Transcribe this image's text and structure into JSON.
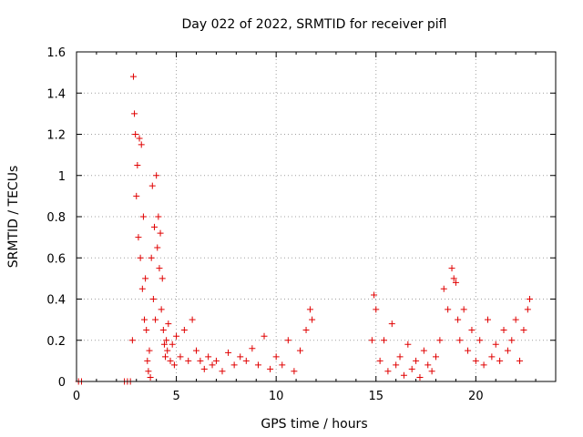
{
  "chart_data": {
    "type": "scatter",
    "title": "Day 022 of 2022, SRMTID for receiver pifl",
    "xlabel": "GPS time / hours",
    "ylabel": "SRMTID / TECUs",
    "xlim": [
      0,
      24
    ],
    "ylim": [
      0,
      1.6
    ],
    "x_ticks": [
      0,
      5,
      10,
      15,
      20
    ],
    "x_tick_labels": [
      "0",
      "5",
      "10",
      "15",
      "20"
    ],
    "y_ticks": [
      0,
      0.2,
      0.4,
      0.6,
      0.8,
      1,
      1.2,
      1.4,
      1.6
    ],
    "y_tick_labels": [
      "0",
      "0.2",
      "0.4",
      "0.6",
      "0.8",
      "1",
      "1.2",
      "1.4",
      "1.6"
    ],
    "grid": true,
    "marker": "plus",
    "color": "#e00000",
    "series": [
      {
        "name": "SRMTID",
        "x": [
          0.1,
          0.25,
          2.4,
          2.55,
          2.7,
          2.8,
          2.85,
          2.9,
          2.95,
          3.0,
          3.05,
          3.1,
          3.15,
          3.2,
          3.25,
          3.3,
          3.35,
          3.4,
          3.45,
          3.5,
          3.55,
          3.6,
          3.65,
          3.7,
          3.75,
          3.8,
          3.85,
          3.9,
          3.95,
          4.0,
          4.05,
          4.1,
          4.15,
          4.2,
          4.25,
          4.3,
          4.35,
          4.4,
          4.45,
          4.5,
          4.55,
          4.6,
          4.7,
          4.8,
          4.9,
          5.0,
          5.2,
          5.4,
          5.6,
          5.8,
          6.0,
          6.2,
          6.4,
          6.6,
          6.8,
          7.0,
          7.3,
          7.6,
          7.9,
          8.2,
          8.5,
          8.8,
          9.1,
          9.4,
          9.7,
          10.0,
          10.3,
          10.6,
          10.9,
          11.2,
          11.5,
          11.7,
          11.8,
          14.8,
          14.9,
          15.0,
          15.2,
          15.4,
          15.6,
          15.8,
          16.0,
          16.2,
          16.4,
          16.6,
          16.8,
          17.0,
          17.2,
          17.4,
          17.6,
          17.8,
          18.0,
          18.2,
          18.4,
          18.6,
          18.8,
          18.9,
          19.0,
          19.1,
          19.2,
          19.4,
          19.6,
          19.8,
          20.0,
          20.2,
          20.4,
          20.6,
          20.8,
          21.0,
          21.2,
          21.4,
          21.6,
          21.8,
          22.0,
          22.2,
          22.4,
          22.6,
          22.7
        ],
        "values": [
          0.0,
          0.0,
          0.0,
          0.0,
          0.0,
          0.2,
          1.48,
          1.3,
          1.2,
          0.9,
          1.05,
          0.7,
          1.18,
          0.6,
          1.15,
          0.45,
          0.8,
          0.3,
          0.5,
          0.25,
          0.1,
          0.05,
          0.15,
          0.02,
          0.6,
          0.95,
          0.4,
          0.75,
          0.3,
          1.0,
          0.65,
          0.8,
          0.55,
          0.72,
          0.35,
          0.5,
          0.25,
          0.18,
          0.12,
          0.2,
          0.15,
          0.28,
          0.1,
          0.18,
          0.08,
          0.22,
          0.12,
          0.25,
          0.1,
          0.3,
          0.15,
          0.1,
          0.06,
          0.12,
          0.08,
          0.1,
          0.05,
          0.14,
          0.08,
          0.12,
          0.1,
          0.16,
          0.08,
          0.22,
          0.06,
          0.12,
          0.08,
          0.2,
          0.05,
          0.15,
          0.25,
          0.35,
          0.3,
          0.2,
          0.42,
          0.35,
          0.1,
          0.2,
          0.05,
          0.28,
          0.08,
          0.12,
          0.03,
          0.18,
          0.06,
          0.1,
          0.02,
          0.15,
          0.08,
          0.05,
          0.12,
          0.2,
          0.45,
          0.35,
          0.55,
          0.5,
          0.48,
          0.3,
          0.2,
          0.35,
          0.15,
          0.25,
          0.1,
          0.2,
          0.08,
          0.3,
          0.12,
          0.18,
          0.1,
          0.25,
          0.15,
          0.2,
          0.3,
          0.1,
          0.25,
          0.35,
          0.4
        ]
      }
    ]
  }
}
